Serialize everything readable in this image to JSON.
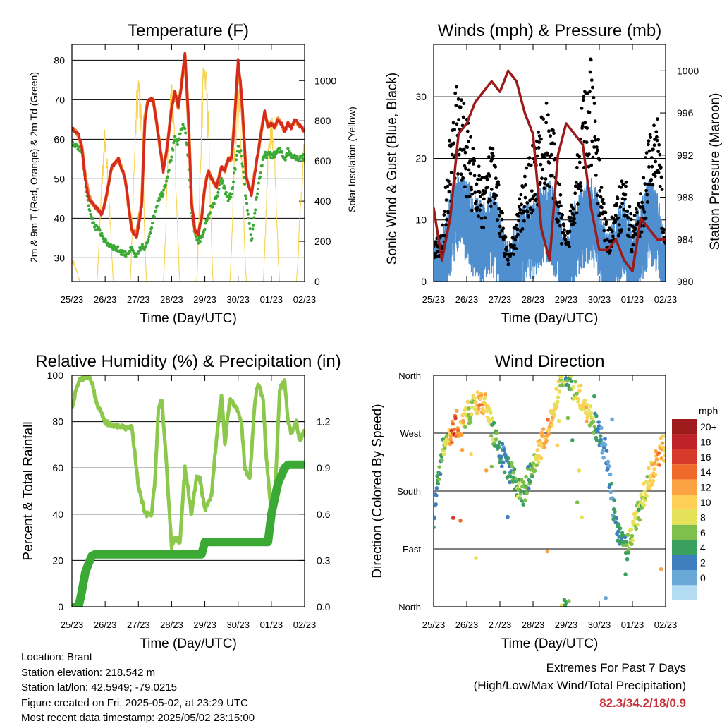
{
  "x_ticks": [
    "25/23",
    "26/23",
    "27/23",
    "28/23",
    "29/23",
    "30/23",
    "01/23",
    "02/23"
  ],
  "x_label": "Time (Day/UTC)",
  "colors": {
    "temp2m": "#d42a20",
    "temp9m": "#f28b30",
    "dewpoint": "#3aaa35",
    "insolation": "#f7d350",
    "wind": "#4f8fcf",
    "gust": "#000000",
    "pressure": "#9b1b1b",
    "rh": "#8cc84b",
    "precip": "#3aaa35"
  },
  "chart_data": [
    {
      "type": "line",
      "title": "Temperature (F)",
      "xlabel": "Time (Day/UTC)",
      "ylabel": "2m & 9m T (Red, Orange) & 2m Td (Green)",
      "ylabel_right": "Solar Insolation (Yellow)",
      "ylim": [
        24,
        84
      ],
      "y_ticks": [
        30,
        40,
        50,
        60,
        70,
        80
      ],
      "ylim_right": [
        0,
        1180
      ],
      "y_ticks_right": [
        0,
        200,
        400,
        600,
        800,
        1000
      ],
      "x": [
        0,
        0.1,
        0.2,
        0.3,
        0.4,
        0.5,
        0.6,
        0.7,
        0.8,
        0.9,
        1.0,
        1.2,
        1.4,
        1.6,
        1.8,
        1.95,
        2.1,
        2.2,
        2.3,
        2.45,
        2.6,
        2.7,
        2.75,
        2.85,
        3.0,
        3.1,
        3.2,
        3.3,
        3.4,
        3.5,
        3.6,
        3.7,
        3.8,
        3.9,
        4.0,
        4.1,
        4.2,
        4.35,
        4.5,
        4.6,
        4.7,
        4.8,
        4.9,
        5.0,
        5.1,
        5.25,
        5.4,
        5.55,
        5.7,
        5.8,
        5.9,
        6.0,
        6.1,
        6.2,
        6.3,
        6.4,
        6.5,
        6.6,
        6.7,
        6.8,
        6.9,
        7.0
      ],
      "series": [
        {
          "name": "2m T",
          "values": [
            63,
            62,
            61,
            58,
            50,
            45,
            44,
            43,
            42,
            41,
            44,
            53,
            55,
            50,
            37,
            35,
            43,
            65,
            70,
            70,
            61,
            55,
            52,
            57,
            68,
            72,
            68,
            74,
            82,
            66,
            44,
            37,
            36,
            40,
            48,
            52,
            50,
            48,
            53,
            52,
            55,
            55,
            66,
            80,
            72,
            50,
            46,
            54,
            62,
            67,
            63,
            64,
            63,
            65,
            64,
            62,
            64,
            63,
            65,
            64,
            63,
            62
          ]
        },
        {
          "name": "9m T",
          "values": [
            63,
            62,
            61,
            58,
            51,
            46,
            44,
            43,
            42,
            41,
            44,
            53,
            55,
            50,
            37,
            36,
            44,
            66,
            70,
            70,
            61,
            55,
            53,
            57,
            68,
            72,
            68,
            74,
            81,
            66,
            44,
            37,
            36,
            40,
            48,
            52,
            50,
            48,
            53,
            52,
            55,
            55,
            66,
            79,
            71,
            50,
            46,
            54,
            62,
            67,
            63,
            64,
            63,
            65,
            64,
            62,
            64,
            63,
            65,
            64,
            63,
            62
          ]
        },
        {
          "name": "2m Td",
          "values": [
            59,
            58,
            58,
            57,
            50,
            43,
            40,
            38,
            37,
            36,
            34,
            33,
            32,
            31,
            32,
            30,
            33,
            32,
            35,
            40,
            45,
            46,
            47,
            50,
            56,
            60,
            59,
            63,
            63,
            55,
            42,
            36,
            34,
            35,
            38,
            40,
            43,
            45,
            50,
            47,
            45,
            46,
            52,
            58,
            56,
            44,
            34,
            45,
            53,
            56,
            56,
            56,
            56,
            57,
            57,
            55,
            57,
            56,
            56,
            55,
            56,
            55
          ]
        },
        {
          "name": "Solar Insolation",
          "axis": "right",
          "daily_peak": [
            110,
            770,
            1100,
            1000,
            1180,
            1000,
            900,
            700
          ]
        }
      ]
    },
    {
      "type": "scatter",
      "title": "Winds (mph) & Pressure (mb)",
      "xlabel": "Time (Day/UTC)",
      "ylabel": "Sonic Wind & Gust (Blue, Black)",
      "ylabel_right": "Station Pressure (Maroon)",
      "ylim": [
        0,
        38.5
      ],
      "y_ticks": [
        0,
        10,
        20,
        30
      ],
      "ylim_right": [
        980,
        1002.5
      ],
      "y_ticks_right": [
        980,
        984,
        988,
        992,
        996,
        1000
      ],
      "x": [
        0,
        0.25,
        0.5,
        0.75,
        1.0,
        1.25,
        1.5,
        1.75,
        2.0,
        2.25,
        2.5,
        2.75,
        3.0,
        3.25,
        3.5,
        3.75,
        4.0,
        4.25,
        4.5,
        4.75,
        5.0,
        5.25,
        5.5,
        5.75,
        6.0,
        6.25,
        6.5,
        6.75,
        7.0
      ],
      "series": [
        {
          "name": "Sonic Wind",
          "values": [
            2,
            3,
            10,
            14,
            12,
            9,
            8,
            10,
            7,
            1,
            5,
            8,
            9,
            11,
            12,
            8,
            2,
            8,
            11,
            12,
            9,
            3,
            6,
            9,
            4,
            8,
            12,
            10,
            2
          ]
        },
        {
          "name": "Gust",
          "values": [
            5,
            6,
            18,
            26,
            20,
            15,
            13,
            17,
            11,
            3,
            8,
            14,
            17,
            20,
            23,
            13,
            5,
            14,
            23,
            27,
            16,
            6,
            10,
            14,
            7,
            11,
            18,
            22,
            5
          ]
        },
        {
          "name": "Station Pressure",
          "axis": "right",
          "values": [
            987,
            982,
            986,
            994,
            995,
            997,
            998,
            999,
            998,
            1000,
            999,
            996,
            994,
            985,
            982,
            992,
            995,
            994,
            993,
            987,
            983,
            983,
            984,
            982,
            981,
            986,
            985,
            984,
            984
          ]
        }
      ]
    },
    {
      "type": "line",
      "title": "Relative Humidity (%) & Precipitation (in)",
      "xlabel": "Time (Day/UTC)",
      "ylabel": "Percent & Total Rainfall",
      "ylim": [
        0,
        100
      ],
      "y_ticks": [
        0,
        20,
        40,
        60,
        80,
        100
      ],
      "ylim_right": [
        0,
        1.5
      ],
      "y_ticks_right": [
        "0.0",
        "0.3",
        "0.6",
        "0.9",
        "1.2"
      ],
      "x": [
        0,
        0.1,
        0.2,
        0.35,
        0.5,
        0.6,
        0.75,
        1.0,
        1.2,
        1.4,
        1.6,
        1.8,
        2.0,
        2.2,
        2.4,
        2.5,
        2.6,
        2.7,
        2.85,
        3.0,
        3.1,
        3.25,
        3.4,
        3.6,
        3.75,
        3.85,
        4.0,
        4.2,
        4.35,
        4.5,
        4.6,
        4.75,
        4.9,
        5.0,
        5.1,
        5.2,
        5.35,
        5.5,
        5.6,
        5.75,
        5.85,
        6.0,
        6.1,
        6.25,
        6.4,
        6.5,
        6.6,
        6.75,
        6.85,
        7.0
      ],
      "series": [
        {
          "name": "Relative Humidity",
          "values": [
            86,
            92,
            97,
            99,
            99,
            97,
            88,
            80,
            78,
            78,
            77,
            78,
            52,
            40,
            40,
            55,
            85,
            90,
            60,
            26,
            30,
            28,
            60,
            40,
            56,
            55,
            42,
            48,
            73,
            92,
            70,
            90,
            87,
            85,
            80,
            60,
            55,
            88,
            97,
            90,
            64,
            41,
            45,
            94,
            98,
            80,
            75,
            80,
            72,
            76
          ]
        },
        {
          "name": "Total Precipitation",
          "axis": "right",
          "x": [
            0,
            0.2,
            0.3,
            0.4,
            0.5,
            0.6,
            0.7,
            0.9,
            1.5,
            2.0,
            2.5,
            3.0,
            3.5,
            3.9,
            4.0,
            4.5,
            5.0,
            5.5,
            5.9,
            6.0,
            6.1,
            6.2,
            6.3,
            6.4,
            6.5,
            7.0
          ],
          "values": [
            0,
            0,
            0.1,
            0.22,
            0.28,
            0.33,
            0.34,
            0.34,
            0.34,
            0.34,
            0.34,
            0.34,
            0.34,
            0.34,
            0.42,
            0.42,
            0.42,
            0.42,
            0.42,
            0.6,
            0.7,
            0.8,
            0.85,
            0.9,
            0.92,
            0.92
          ]
        }
      ]
    },
    {
      "type": "scatter",
      "title": "Wind Direction",
      "xlabel": "Time (Day/UTC)",
      "ylabel": "Direction (Colored By Speed)",
      "y_tick_labels": [
        "North",
        "East",
        "South",
        "West",
        "North"
      ],
      "ylim": [
        0,
        360
      ],
      "x": [
        0,
        0.1,
        0.2,
        0.3,
        0.4,
        0.5,
        0.6,
        0.7,
        0.8,
        0.9,
        1.0,
        1.2,
        1.4,
        1.6,
        1.8,
        1.95,
        2.1,
        2.3,
        2.5,
        2.7,
        2.85,
        3.0,
        3.2,
        3.4,
        3.6,
        3.8,
        3.9,
        4.0,
        4.2,
        4.4,
        4.6,
        4.8,
        5.0,
        5.2,
        5.4,
        5.6,
        5.8,
        5.9,
        6.0,
        6.2,
        6.4,
        6.6,
        6.8,
        7.0
      ],
      "series": [
        {
          "name": "Direction",
          "values": [
            140,
            190,
            210,
            250,
            255,
            265,
            275,
            285,
            280,
            290,
            300,
            310,
            320,
            315,
            270,
            250,
            230,
            210,
            190,
            175,
            200,
            215,
            245,
            270,
            300,
            340,
            350,
            355,
            340,
            330,
            310,
            290,
            270,
            240,
            160,
            110,
            90,
            95,
            120,
            150,
            185,
            210,
            240,
            250
          ],
          "speed": [
            3,
            4,
            4,
            6,
            8,
            12,
            16,
            14,
            12,
            10,
            8,
            8,
            12,
            10,
            6,
            4,
            2,
            4,
            6,
            6,
            4,
            6,
            10,
            12,
            10,
            8,
            6,
            4,
            6,
            8,
            10,
            6,
            2,
            0,
            2,
            4,
            4,
            6,
            8,
            6,
            8,
            10,
            12,
            10
          ]
        }
      ],
      "legend_title": "mph",
      "legend_placement": "right",
      "legend_labels": [
        "20+",
        "18",
        "16",
        "14",
        "12",
        "10",
        "8",
        "6",
        "4",
        "2",
        "0"
      ],
      "legend_colors": [
        "#9e1b1b",
        "#be2128",
        "#d63a2a",
        "#f06a2c",
        "#fba342",
        "#fdd055",
        "#e5e25a",
        "#7fbf4c",
        "#3aa060",
        "#3f7fc0",
        "#6aa8d8",
        "#b3dcf2"
      ]
    }
  ],
  "info": {
    "location": "Location: Brant",
    "elevation": "Station elevation: 218.542 m",
    "latlon": "Station lat/lon: 42.5949; -79.0215",
    "created": "Figure created on Fri, 2025-05-02, at 23:29 UTC",
    "recent": "Most recent data timestamp: 2025/05/02 23:15:00"
  },
  "extremes": {
    "title": "Extremes For Past 7 Days",
    "subtitle": "(High/Low/Max Wind/Total Precipitation)",
    "values": "82.3/34.2/18/0.9"
  }
}
